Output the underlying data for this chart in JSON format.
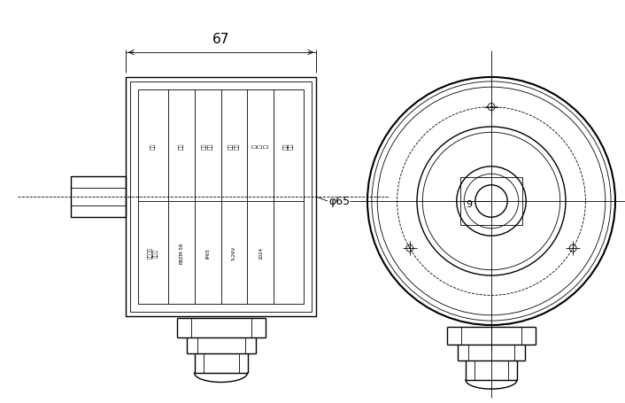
{
  "bg_color": "#ffffff",
  "line_color": "#000000",
  "label_67": "67",
  "label_phi65": "φ65",
  "label_9": "9",
  "lw_thin": 0.6,
  "lw_mid": 1.0,
  "lw_thick": 1.5
}
